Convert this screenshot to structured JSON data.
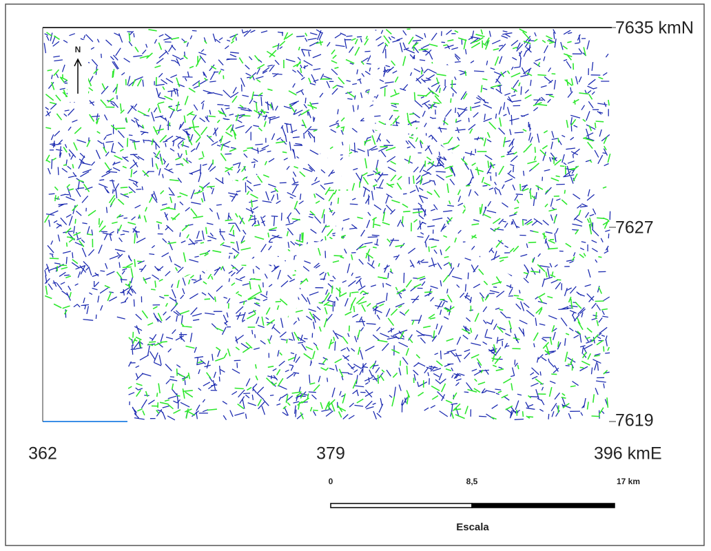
{
  "map": {
    "north_label": "N",
    "y_labels": [
      "7635 kmN",
      "7627",
      "7619"
    ],
    "x_labels": [
      "362",
      "379",
      "396 kmE"
    ],
    "scale": {
      "ticks": [
        "0",
        "8,5",
        "17 km"
      ],
      "title": "Escala"
    }
  }
}
